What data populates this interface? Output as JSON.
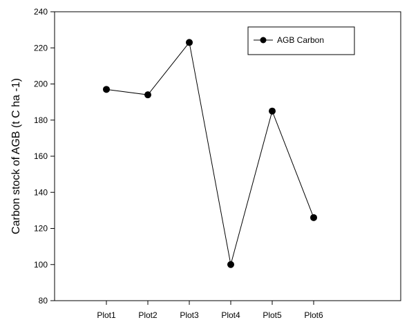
{
  "chart_data": {
    "type": "line",
    "categories": [
      "Plot1",
      "Plot2",
      "Plot3",
      "Plot4",
      "Plot5",
      "Plot6"
    ],
    "series": [
      {
        "name": "AGB Carbon",
        "values": [
          197,
          194,
          223,
          100,
          185,
          126
        ],
        "color": "#000000",
        "marker": "filled-circle"
      }
    ],
    "title": "",
    "xlabel": "",
    "ylabel": "Carbon stock of AGB (t C  ha -1)",
    "ylim": [
      80,
      240
    ],
    "yticks": [
      80,
      100,
      120,
      140,
      160,
      180,
      200,
      220,
      240
    ],
    "grid": false,
    "legend_position": "top-right"
  }
}
